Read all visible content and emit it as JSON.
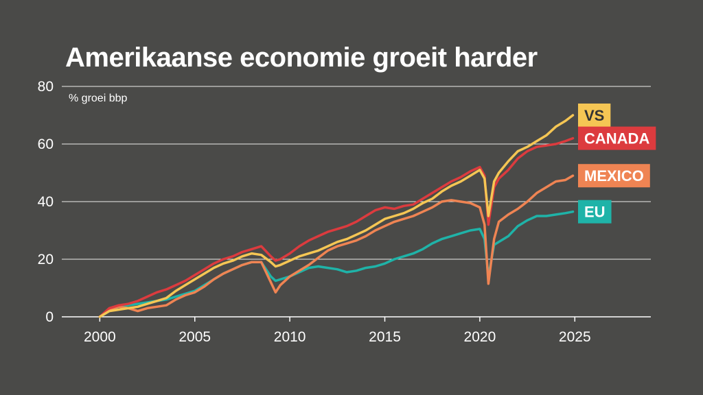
{
  "chart_data": {
    "type": "line",
    "title": "Amerikaanse economie groeit harder",
    "ylabel": "% groei bbp",
    "xlim": [
      1998,
      2029
    ],
    "ylim": [
      0,
      80
    ],
    "x_ticks": [
      2000,
      2005,
      2010,
      2015,
      2020,
      2025
    ],
    "y_ticks": [
      0,
      20,
      40,
      60,
      80
    ],
    "grid": "horizontal",
    "legend": "end-of-line labels",
    "series": [
      {
        "name": "VS",
        "color": "#f5c654",
        "text_color": "#333333",
        "points": [
          [
            2000,
            0
          ],
          [
            2000.5,
            2
          ],
          [
            2001,
            2.5
          ],
          [
            2001.5,
            3
          ],
          [
            2002,
            3.5
          ],
          [
            2002.5,
            4.5
          ],
          [
            2003,
            5.5
          ],
          [
            2003.5,
            6.5
          ],
          [
            2004,
            9
          ],
          [
            2004.5,
            11
          ],
          [
            2005,
            13
          ],
          [
            2005.5,
            15
          ],
          [
            2006,
            17
          ],
          [
            2006.5,
            18.5
          ],
          [
            2007,
            19.5
          ],
          [
            2007.5,
            21
          ],
          [
            2008,
            22
          ],
          [
            2008.5,
            21.5
          ],
          [
            2009,
            19
          ],
          [
            2009.25,
            17.5
          ],
          [
            2009.5,
            18
          ],
          [
            2010,
            19.5
          ],
          [
            2010.5,
            21
          ],
          [
            2011,
            22
          ],
          [
            2011.5,
            23
          ],
          [
            2012,
            24.5
          ],
          [
            2012.5,
            26
          ],
          [
            2013,
            27
          ],
          [
            2013.5,
            28.5
          ],
          [
            2014,
            30
          ],
          [
            2014.5,
            32
          ],
          [
            2015,
            34
          ],
          [
            2015.5,
            35
          ],
          [
            2016,
            36
          ],
          [
            2016.5,
            37.5
          ],
          [
            2017,
            39.5
          ],
          [
            2017.5,
            41
          ],
          [
            2018,
            43.5
          ],
          [
            2018.5,
            45.5
          ],
          [
            2019,
            47
          ],
          [
            2019.5,
            49
          ],
          [
            2020,
            51
          ],
          [
            2020.25,
            48
          ],
          [
            2020.45,
            35
          ],
          [
            2020.75,
            47
          ],
          [
            2021,
            50
          ],
          [
            2021.5,
            54
          ],
          [
            2022,
            57.5
          ],
          [
            2022.5,
            59
          ],
          [
            2023,
            61
          ],
          [
            2023.5,
            63
          ],
          [
            2024,
            66
          ],
          [
            2024.5,
            68
          ],
          [
            2024.9,
            70
          ]
        ]
      },
      {
        "name": "CANADA",
        "color": "#dc3b3e",
        "text_color": "#ffffff",
        "points": [
          [
            2000,
            0
          ],
          [
            2000.5,
            3
          ],
          [
            2001,
            4
          ],
          [
            2001.5,
            4.5
          ],
          [
            2002,
            5.5
          ],
          [
            2002.5,
            7
          ],
          [
            2003,
            8.5
          ],
          [
            2003.5,
            9.5
          ],
          [
            2004,
            11
          ],
          [
            2004.5,
            12.5
          ],
          [
            2005,
            14.5
          ],
          [
            2005.5,
            16.5
          ],
          [
            2006,
            18.5
          ],
          [
            2006.5,
            20
          ],
          [
            2007,
            21
          ],
          [
            2007.5,
            22.5
          ],
          [
            2008,
            23.5
          ],
          [
            2008.5,
            24.5
          ],
          [
            2009,
            21
          ],
          [
            2009.25,
            19.5
          ],
          [
            2009.5,
            20
          ],
          [
            2010,
            22
          ],
          [
            2010.5,
            24.5
          ],
          [
            2011,
            26.5
          ],
          [
            2011.5,
            28
          ],
          [
            2012,
            29.5
          ],
          [
            2012.5,
            30.5
          ],
          [
            2013,
            31.5
          ],
          [
            2013.5,
            33
          ],
          [
            2014,
            35
          ],
          [
            2014.5,
            37
          ],
          [
            2015,
            38
          ],
          [
            2015.5,
            37.5
          ],
          [
            2016,
            38.5
          ],
          [
            2016.5,
            39
          ],
          [
            2017,
            41
          ],
          [
            2017.5,
            43
          ],
          [
            2018,
            45
          ],
          [
            2018.5,
            47
          ],
          [
            2019,
            48.5
          ],
          [
            2019.5,
            50.5
          ],
          [
            2020,
            52
          ],
          [
            2020.25,
            49
          ],
          [
            2020.45,
            32
          ],
          [
            2020.75,
            45
          ],
          [
            2021,
            48
          ],
          [
            2021.5,
            51
          ],
          [
            2022,
            55
          ],
          [
            2022.5,
            57.5
          ],
          [
            2023,
            59
          ],
          [
            2023.5,
            59.5
          ],
          [
            2024,
            60
          ],
          [
            2024.5,
            61
          ],
          [
            2024.9,
            62
          ]
        ]
      },
      {
        "name": "MEXICO",
        "color": "#ef8453",
        "text_color": "#ffffff",
        "points": [
          [
            2000,
            0
          ],
          [
            2000.5,
            2.5
          ],
          [
            2001,
            3.5
          ],
          [
            2001.5,
            3
          ],
          [
            2002,
            2
          ],
          [
            2002.5,
            3
          ],
          [
            2003,
            3.5
          ],
          [
            2003.5,
            4
          ],
          [
            2004,
            6
          ],
          [
            2004.5,
            7.5
          ],
          [
            2005,
            8.5
          ],
          [
            2005.5,
            10.5
          ],
          [
            2006,
            13
          ],
          [
            2006.5,
            15
          ],
          [
            2007,
            16.5
          ],
          [
            2007.5,
            18
          ],
          [
            2008,
            19
          ],
          [
            2008.5,
            19
          ],
          [
            2009,
            12
          ],
          [
            2009.25,
            8.5
          ],
          [
            2009.5,
            11
          ],
          [
            2010,
            14
          ],
          [
            2010.5,
            16
          ],
          [
            2011,
            18
          ],
          [
            2011.5,
            20.5
          ],
          [
            2012,
            23
          ],
          [
            2012.5,
            24.5
          ],
          [
            2013,
            25.5
          ],
          [
            2013.5,
            26.5
          ],
          [
            2014,
            28
          ],
          [
            2014.5,
            30
          ],
          [
            2015,
            31.5
          ],
          [
            2015.5,
            33
          ],
          [
            2016,
            34
          ],
          [
            2016.5,
            35
          ],
          [
            2017,
            36.5
          ],
          [
            2017.5,
            38
          ],
          [
            2018,
            40
          ],
          [
            2018.5,
            40.5
          ],
          [
            2019,
            40
          ],
          [
            2019.5,
            39.5
          ],
          [
            2020,
            38
          ],
          [
            2020.25,
            32
          ],
          [
            2020.45,
            11.5
          ],
          [
            2020.75,
            27
          ],
          [
            2021,
            33
          ],
          [
            2021.5,
            35.5
          ],
          [
            2022,
            37.5
          ],
          [
            2022.5,
            40
          ],
          [
            2023,
            43
          ],
          [
            2023.5,
            45
          ],
          [
            2024,
            47
          ],
          [
            2024.5,
            47.5
          ],
          [
            2024.9,
            49
          ]
        ]
      },
      {
        "name": "EU",
        "color": "#1fb3a8",
        "text_color": "#ffffff",
        "points": [
          [
            2000,
            0
          ],
          [
            2000.5,
            2
          ],
          [
            2001,
            3.5
          ],
          [
            2001.5,
            4
          ],
          [
            2002,
            4.5
          ],
          [
            2002.5,
            5
          ],
          [
            2003,
            5.5
          ],
          [
            2003.5,
            6
          ],
          [
            2004,
            7
          ],
          [
            2004.5,
            8
          ],
          [
            2005,
            9
          ],
          [
            2005.5,
            11
          ],
          [
            2006,
            13
          ],
          [
            2006.5,
            15
          ],
          [
            2007,
            16.5
          ],
          [
            2007.5,
            18
          ],
          [
            2008,
            19
          ],
          [
            2008.5,
            19
          ],
          [
            2009,
            14
          ],
          [
            2009.25,
            12.5
          ],
          [
            2009.5,
            13
          ],
          [
            2010,
            14
          ],
          [
            2010.5,
            15.5
          ],
          [
            2011,
            17
          ],
          [
            2011.5,
            17.5
          ],
          [
            2012,
            17
          ],
          [
            2012.5,
            16.5
          ],
          [
            2013,
            15.5
          ],
          [
            2013.5,
            16
          ],
          [
            2014,
            17
          ],
          [
            2014.5,
            17.5
          ],
          [
            2015,
            18.5
          ],
          [
            2015.5,
            20
          ],
          [
            2016,
            21
          ],
          [
            2016.5,
            22
          ],
          [
            2017,
            23.5
          ],
          [
            2017.5,
            25.5
          ],
          [
            2018,
            27
          ],
          [
            2018.5,
            28
          ],
          [
            2019,
            29
          ],
          [
            2019.5,
            30
          ],
          [
            2020,
            30.5
          ],
          [
            2020.25,
            27
          ],
          [
            2020.45,
            14
          ],
          [
            2020.75,
            25
          ],
          [
            2021,
            26
          ],
          [
            2021.5,
            28
          ],
          [
            2022,
            31.5
          ],
          [
            2022.5,
            33.5
          ],
          [
            2023,
            35
          ],
          [
            2023.5,
            35
          ],
          [
            2024,
            35.5
          ],
          [
            2024.5,
            36
          ],
          [
            2024.9,
            36.5
          ]
        ]
      }
    ]
  }
}
